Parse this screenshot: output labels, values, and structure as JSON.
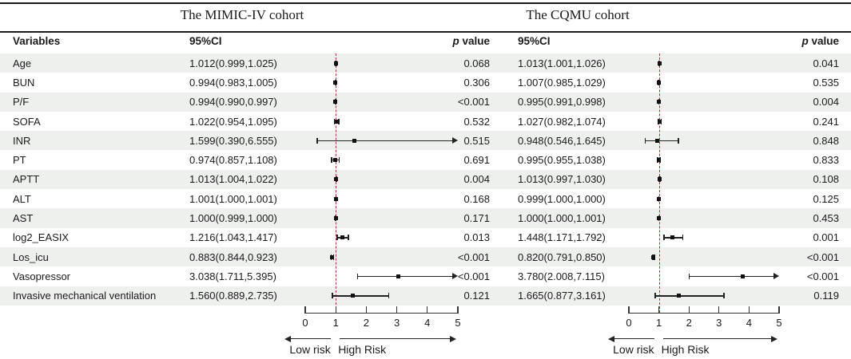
{
  "header": {
    "cohorts": [
      {
        "name": "The MIMIC-IV cohort"
      },
      {
        "name": "The CQMU cohort"
      }
    ]
  },
  "columns": {
    "variables": "Variables",
    "ci": "95%CI",
    "p_italic": "p",
    "p_rest": " value"
  },
  "colors": {
    "row_shade": "#eef0ee",
    "reference_line": "#a5372d",
    "marker": "#111111"
  },
  "chart_data": {
    "type": "forest",
    "xlim": [
      0,
      5
    ],
    "ref_line": 1,
    "axis_ticks": [
      0,
      1,
      2,
      3,
      4,
      5
    ],
    "axis_arrow_labels": {
      "low": "Low risk",
      "high": "High Risk"
    },
    "cohort_keys": [
      "mimic",
      "cqmu"
    ],
    "rows": [
      {
        "variable": "Age",
        "mimic": {
          "ci": "1.012(0.999,1.025)",
          "est": 1.012,
          "low": 0.999,
          "high": 1.025,
          "p": "0.068"
        },
        "cqmu": {
          "ci": "1.013(1.001,1.026)",
          "est": 1.013,
          "low": 1.001,
          "high": 1.026,
          "p": "0.041"
        }
      },
      {
        "variable": "BUN",
        "mimic": {
          "ci": "0.994(0.983,1.005)",
          "est": 0.994,
          "low": 0.983,
          "high": 1.005,
          "p": "0.306"
        },
        "cqmu": {
          "ci": "1.007(0.985,1.029)",
          "est": 1.007,
          "low": 0.985,
          "high": 1.029,
          "p": "0.535"
        }
      },
      {
        "variable": "P/F",
        "mimic": {
          "ci": "0.994(0.990,0.997)",
          "est": 0.994,
          "low": 0.99,
          "high": 0.997,
          "p": "<0.001"
        },
        "cqmu": {
          "ci": "0.995(0.991,0.998)",
          "est": 0.995,
          "low": 0.991,
          "high": 0.998,
          "p": "0.004"
        }
      },
      {
        "variable": "SOFA",
        "mimic": {
          "ci": "1.022(0.954,1.095)",
          "est": 1.022,
          "low": 0.954,
          "high": 1.095,
          "p": "0.532"
        },
        "cqmu": {
          "ci": "1.027(0.982,1.074)",
          "est": 1.027,
          "low": 0.982,
          "high": 1.074,
          "p": "0.241"
        }
      },
      {
        "variable": "INR",
        "mimic": {
          "ci": "1.599(0.390,6.555)",
          "est": 1.599,
          "low": 0.39,
          "high": 6.555,
          "p": "0.515"
        },
        "cqmu": {
          "ci": "0.948(0.546,1.645)",
          "est": 0.948,
          "low": 0.546,
          "high": 1.645,
          "p": "0.848"
        }
      },
      {
        "variable": "PT",
        "mimic": {
          "ci": "0.974(0.857,1.108)",
          "est": 0.974,
          "low": 0.857,
          "high": 1.108,
          "p": "0.691"
        },
        "cqmu": {
          "ci": "0.995(0.955,1.038)",
          "est": 0.995,
          "low": 0.955,
          "high": 1.038,
          "p": "0.833"
        }
      },
      {
        "variable": "APTT",
        "mimic": {
          "ci": "1.013(1.004,1.022)",
          "est": 1.013,
          "low": 1.004,
          "high": 1.022,
          "p": "0.004"
        },
        "cqmu": {
          "ci": "1.013(0.997,1.030)",
          "est": 1.013,
          "low": 0.997,
          "high": 1.03,
          "p": "0.108"
        }
      },
      {
        "variable": "ALT",
        "mimic": {
          "ci": "1.001(1.000,1.001)",
          "est": 1.001,
          "low": 1.0,
          "high": 1.001,
          "p": "0.168"
        },
        "cqmu": {
          "ci": "0.999(1.000,1.000)",
          "est": 0.999,
          "low": 1.0,
          "high": 1.0,
          "p": "0.125"
        }
      },
      {
        "variable": "AST",
        "mimic": {
          "ci": "1.000(0.999,1.000)",
          "est": 1.0,
          "low": 0.999,
          "high": 1.0,
          "p": "0.171"
        },
        "cqmu": {
          "ci": "1.000(1.000,1.001)",
          "est": 1.0,
          "low": 1.0,
          "high": 1.001,
          "p": "0.453"
        }
      },
      {
        "variable": "log2_EASIX",
        "mimic": {
          "ci": "1.216(1.043,1.417)",
          "est": 1.216,
          "low": 1.043,
          "high": 1.417,
          "p": "0.013"
        },
        "cqmu": {
          "ci": "1.448(1.171,1.792)",
          "est": 1.448,
          "low": 1.171,
          "high": 1.792,
          "p": "0.001"
        }
      },
      {
        "variable": "Los_icu",
        "mimic": {
          "ci": "0.883(0.844,0.923)",
          "est": 0.883,
          "low": 0.844,
          "high": 0.923,
          "p": "<0.001"
        },
        "cqmu": {
          "ci": "0.820(0.791,0.850)",
          "est": 0.82,
          "low": 0.791,
          "high": 0.85,
          "p": "<0.001"
        }
      },
      {
        "variable": "Vasopressor",
        "mimic": {
          "ci": "3.038(1.711,5.395)",
          "est": 3.038,
          "low": 1.711,
          "high": 5.395,
          "p": "<0.001"
        },
        "cqmu": {
          "ci": "3.780(2.008,7.115)",
          "est": 3.78,
          "low": 2.008,
          "high": 7.115,
          "p": "<0.001"
        }
      },
      {
        "variable": "Invasive mechanical ventilation",
        "mimic": {
          "ci": "1.560(0.889,2.735)",
          "est": 1.56,
          "low": 0.889,
          "high": 2.735,
          "p": "0.121"
        },
        "cqmu": {
          "ci": "1.665(0.877,3.161)",
          "est": 1.665,
          "low": 0.877,
          "high": 3.161,
          "p": "0.119"
        }
      }
    ]
  }
}
